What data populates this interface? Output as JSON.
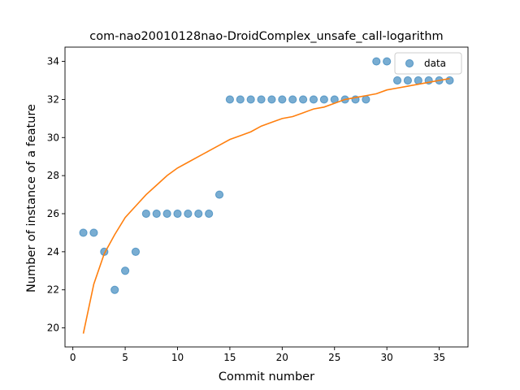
{
  "chart_data": {
    "type": "scatter",
    "title": "com-nao20010128nao-DroidComplex_unsafe_call-logarithm",
    "xlabel": "Commit number",
    "ylabel": "Number of instance of a feature",
    "xlim": [
      -0.75,
      37.75
    ],
    "ylim": [
      19.0,
      34.75
    ],
    "xticks": [
      0,
      5,
      10,
      15,
      20,
      25,
      30,
      35
    ],
    "yticks": [
      20,
      22,
      24,
      26,
      28,
      30,
      32,
      34
    ],
    "grid": false,
    "legend": {
      "position": "top-right",
      "entries": [
        "data"
      ]
    },
    "series": [
      {
        "name": "data",
        "kind": "scatter",
        "color": "#1f77b4",
        "x": [
          1,
          2,
          3,
          4,
          5,
          6,
          7,
          8,
          9,
          10,
          11,
          12,
          13,
          14,
          15,
          16,
          17,
          18,
          19,
          20,
          21,
          22,
          23,
          24,
          25,
          26,
          27,
          28,
          29,
          30,
          31,
          32,
          33,
          34,
          35,
          36
        ],
        "y": [
          25,
          25,
          24,
          22,
          23,
          24,
          26,
          26,
          26,
          26,
          26,
          26,
          26,
          27,
          32,
          32,
          32,
          32,
          32,
          32,
          32,
          32,
          32,
          32,
          32,
          32,
          32,
          32,
          34,
          34,
          33,
          33,
          33,
          33,
          33,
          33
        ]
      },
      {
        "kind": "line",
        "color": "#ff7f0e",
        "x": [
          1,
          2,
          3,
          4,
          5,
          6,
          7,
          8,
          9,
          10,
          11,
          12,
          13,
          14,
          15,
          16,
          17,
          18,
          19,
          20,
          21,
          22,
          23,
          24,
          25,
          26,
          27,
          28,
          29,
          30,
          31,
          32,
          33,
          34,
          35,
          36
        ],
        "y": [
          19.7,
          22.3,
          23.9,
          24.9,
          25.8,
          26.4,
          27.0,
          27.5,
          28.0,
          28.4,
          28.7,
          29.0,
          29.3,
          29.6,
          29.9,
          30.1,
          30.3,
          30.6,
          30.8,
          31.0,
          31.1,
          31.3,
          31.5,
          31.6,
          31.8,
          32.0,
          32.1,
          32.2,
          32.3,
          32.5,
          32.6,
          32.7,
          32.8,
          32.9,
          33.0,
          33.1
        ]
      }
    ]
  }
}
